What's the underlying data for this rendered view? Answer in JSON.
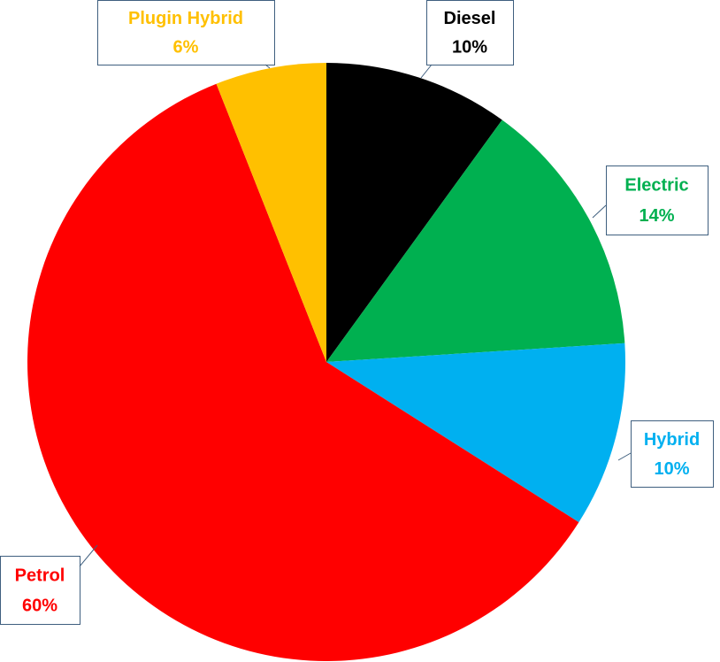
{
  "chart_data": {
    "type": "pie",
    "categories": [
      "Diesel",
      "Electric",
      "Hybrid",
      "Petrol",
      "Plugin Hybrid"
    ],
    "values": [
      10,
      14,
      10,
      60,
      6
    ],
    "value_labels": [
      "10%",
      "14%",
      "10%",
      "60%",
      "6%"
    ],
    "colors": [
      "#000000",
      "#00b050",
      "#00b0f0",
      "#ff0000",
      "#ffc000"
    ]
  }
}
